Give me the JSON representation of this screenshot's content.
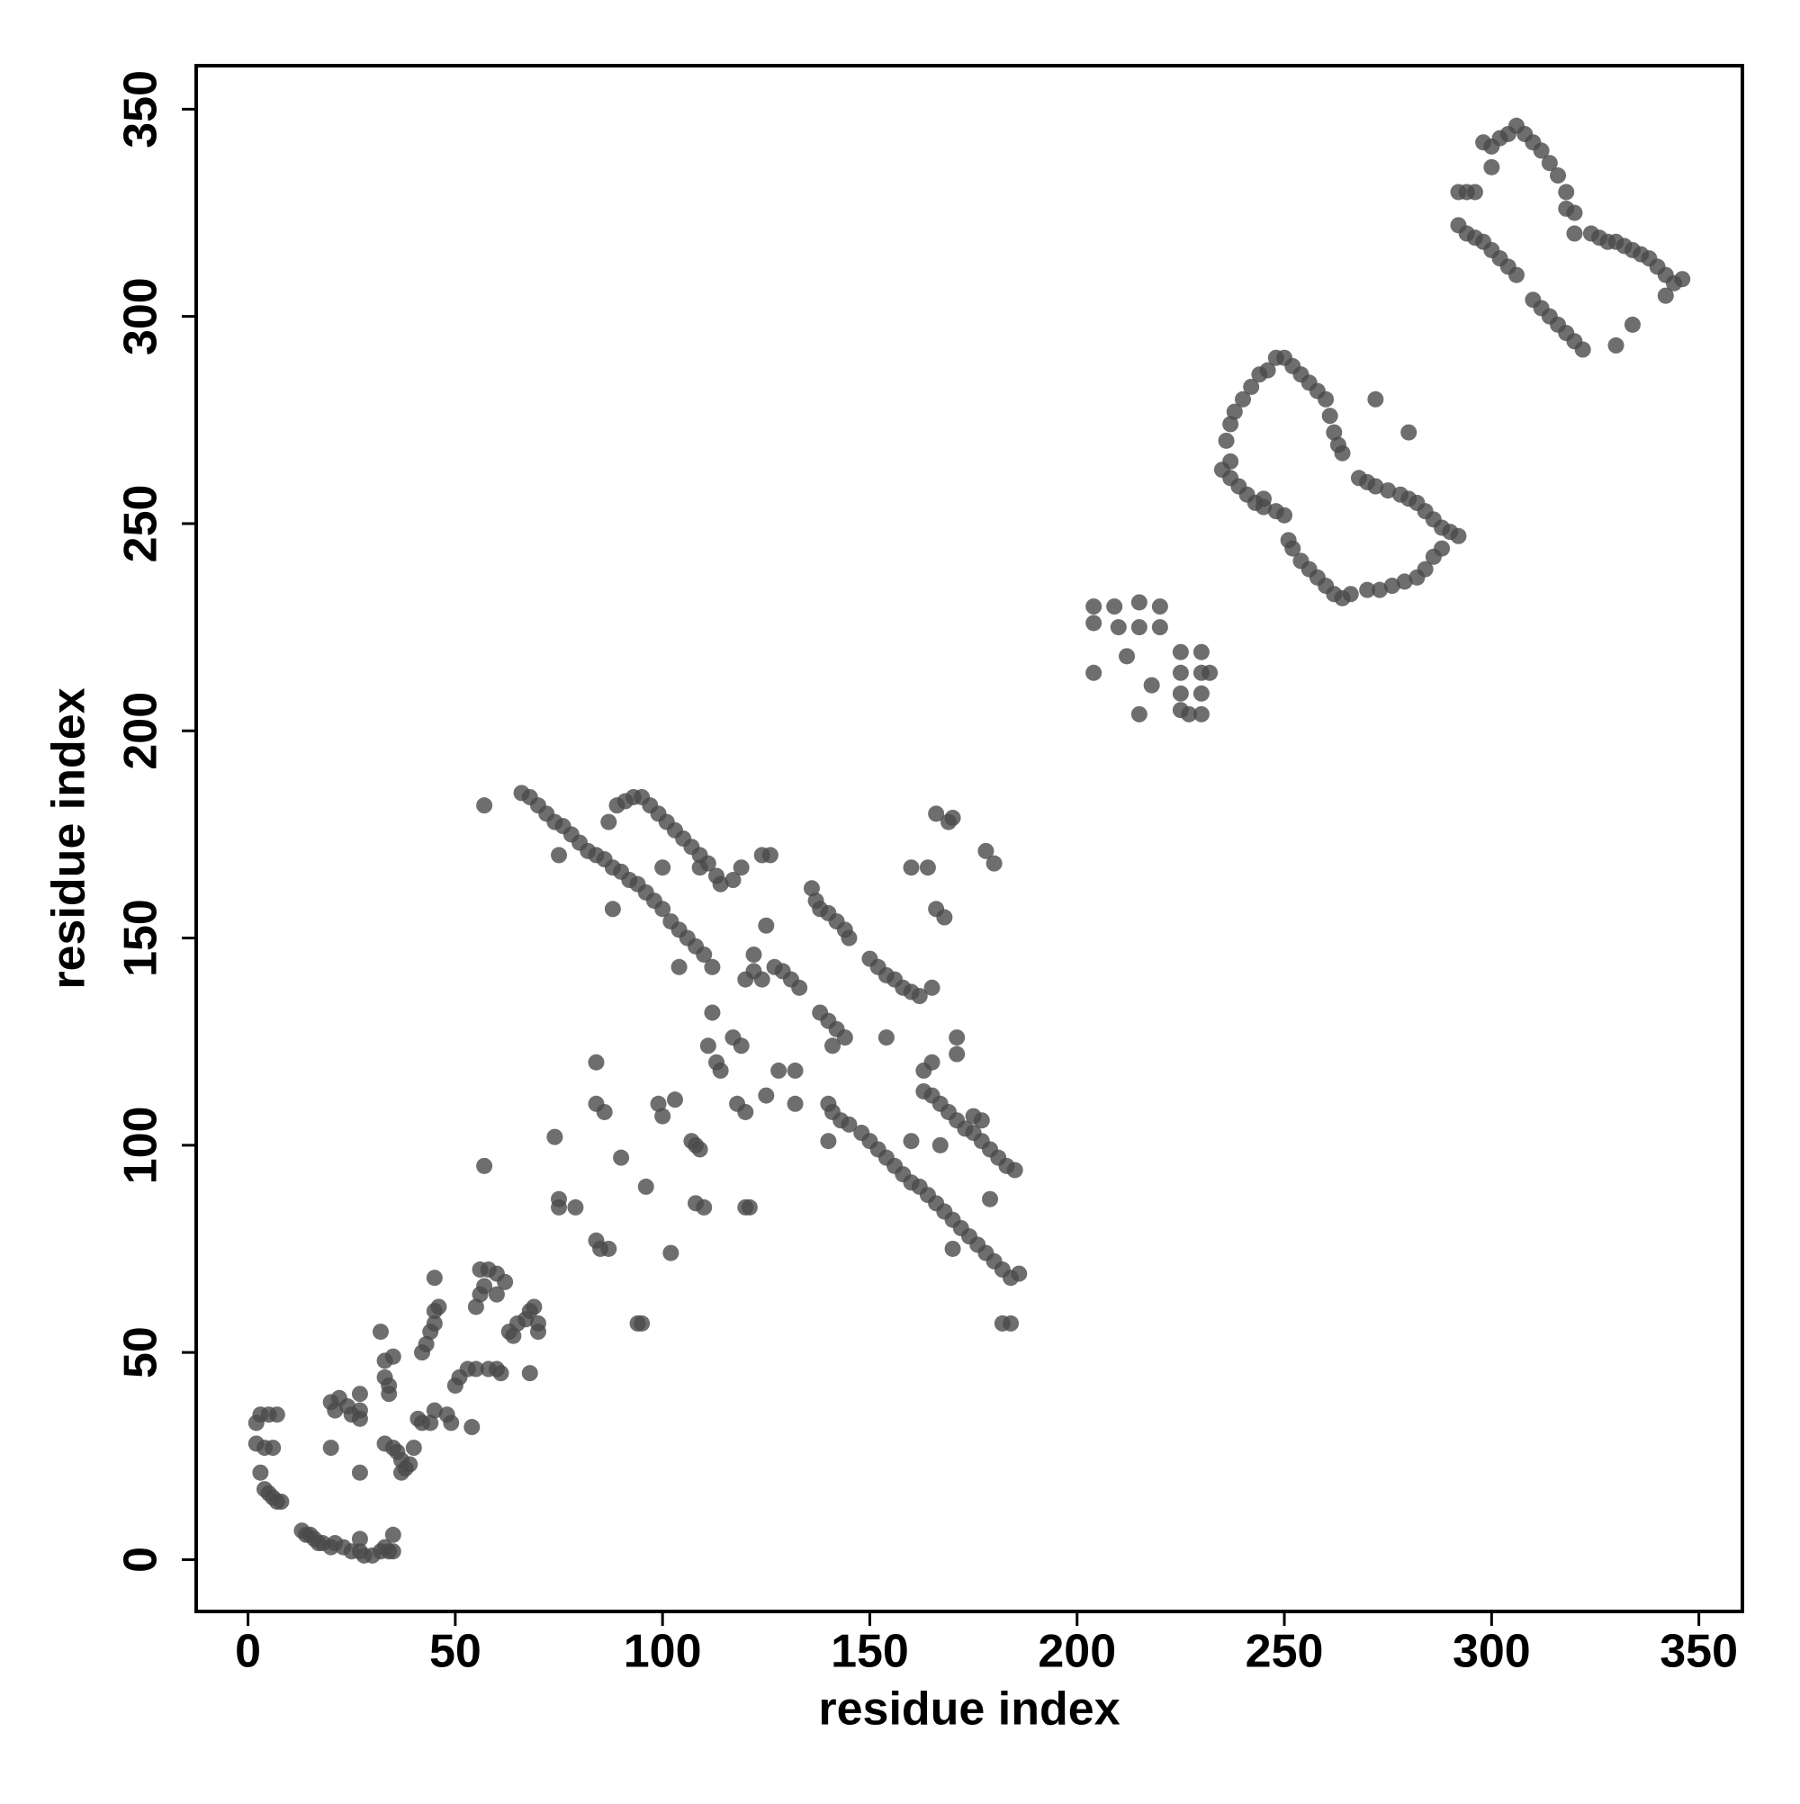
{
  "chart_data": {
    "type": "scatter",
    "x_label": "residue index",
    "y_label": "residue index",
    "xlim": [
      -12.5,
      360.5
    ],
    "ylim": [
      -12.5,
      360.5
    ],
    "xticks": [
      0,
      50,
      100,
      150,
      200,
      250,
      300,
      350
    ],
    "yticks": [
      0,
      50,
      100,
      150,
      200,
      250,
      300,
      350
    ],
    "color": "#4a4a4a",
    "x": [
      2,
      3,
      5,
      7,
      2,
      4,
      6,
      3,
      4,
      5,
      6,
      7,
      8,
      13,
      14,
      15,
      16,
      17,
      18,
      20,
      21,
      23,
      25,
      27,
      28,
      30,
      32,
      34,
      35,
      35,
      27,
      33,
      20,
      21,
      22,
      24,
      25,
      27,
      27,
      27,
      20,
      27,
      32,
      33,
      34,
      33,
      35,
      34,
      33,
      35,
      36,
      37,
      38,
      37,
      39,
      40,
      42,
      41,
      44,
      49,
      48,
      45,
      54,
      42,
      43,
      44,
      45,
      45,
      46,
      45,
      50,
      51,
      53,
      55,
      58,
      60,
      61,
      55,
      56,
      57,
      58,
      60,
      62,
      60,
      56,
      57,
      63,
      65,
      67,
      68,
      69,
      70,
      70,
      68,
      64,
      74,
      75,
      75,
      79,
      84,
      85,
      87,
      84,
      84,
      86,
      90,
      94,
      95,
      96,
      99,
      100,
      102,
      107,
      109,
      108,
      110,
      120,
      121,
      109,
      100,
      117,
      66,
      68,
      70,
      72,
      74,
      76,
      78,
      80,
      82,
      84,
      86,
      88,
      90,
      92,
      94,
      96,
      98,
      100,
      102,
      104,
      106,
      108,
      110,
      112,
      87,
      89,
      91,
      93,
      95,
      97,
      99,
      101,
      103,
      105,
      107,
      109,
      111,
      113,
      114,
      57,
      75,
      88,
      104,
      136,
      137,
      138,
      140,
      142,
      144,
      145,
      150,
      152,
      154,
      156,
      158,
      160,
      162,
      165,
      122,
      124,
      127,
      129,
      131,
      133,
      138,
      140,
      142,
      144,
      141,
      117,
      119,
      111,
      113,
      114,
      112,
      118,
      120,
      125,
      128,
      132,
      132,
      140,
      141,
      143,
      145,
      148,
      150,
      152,
      154,
      156,
      158,
      160,
      162,
      164,
      166,
      168,
      170,
      172,
      174,
      176,
      178,
      180,
      182,
      184,
      186,
      163,
      165,
      167,
      169,
      171,
      173,
      175,
      177,
      179,
      181,
      183,
      185,
      166,
      169,
      170,
      178,
      180,
      164,
      160,
      166,
      168,
      154,
      163,
      171,
      171,
      179,
      182,
      184,
      170,
      175,
      177,
      160,
      167,
      140,
      125,
      122,
      119,
      108,
      103,
      120,
      124,
      126,
      165,
      204,
      204,
      204,
      209,
      210,
      212,
      215,
      215,
      215,
      220,
      220,
      218,
      225,
      225,
      225,
      225,
      227,
      230,
      230,
      230,
      230,
      232,
      235,
      237,
      239,
      241,
      243,
      245,
      248,
      250,
      236,
      237,
      238,
      240,
      242,
      244,
      246,
      248,
      250,
      252,
      254,
      256,
      258,
      260,
      261,
      262,
      263,
      264,
      268,
      270,
      272,
      275,
      278,
      280,
      282,
      284,
      286,
      288,
      290,
      292,
      288,
      286,
      284,
      282,
      279,
      276,
      273,
      270,
      266,
      264,
      262,
      260,
      258,
      256,
      254,
      252,
      251,
      237,
      245,
      272,
      280,
      298,
      300,
      302,
      304,
      306,
      308,
      310,
      312,
      314,
      316,
      318,
      318,
      320,
      292,
      294,
      296,
      300,
      292,
      294,
      296,
      298,
      300,
      302,
      304,
      306,
      310,
      312,
      314,
      316,
      318,
      320,
      322,
      330,
      334,
      320,
      324,
      326,
      328,
      330,
      332,
      334,
      336,
      338,
      340,
      342,
      344,
      346,
      342
    ],
    "values": [
      33,
      35,
      35,
      35,
      28,
      27,
      27,
      21,
      17,
      16,
      15,
      14,
      14,
      7,
      6,
      6,
      5,
      4,
      4,
      3,
      4,
      3,
      2,
      2,
      1,
      1,
      2,
      2,
      2,
      6,
      5,
      3,
      38,
      36,
      39,
      37,
      35,
      34,
      36,
      40,
      27,
      21,
      55,
      48,
      42,
      44,
      49,
      40,
      28,
      27,
      26,
      24,
      22,
      21,
      23,
      27,
      33,
      34,
      33,
      33,
      35,
      36,
      32,
      50,
      52,
      55,
      57,
      60,
      61,
      68,
      42,
      44,
      46,
      46,
      46,
      46,
      45,
      61,
      64,
      66,
      70,
      69,
      67,
      64,
      70,
      95,
      55,
      57,
      58,
      60,
      61,
      57,
      55,
      45,
      54,
      102,
      87,
      85,
      85,
      77,
      75,
      75,
      120,
      110,
      108,
      97,
      57,
      57,
      90,
      110,
      107,
      74,
      101,
      99,
      86,
      85,
      85,
      85,
      167,
      167,
      164,
      185,
      184,
      182,
      180,
      178,
      177,
      175,
      173,
      171,
      170,
      169,
      167,
      166,
      164,
      163,
      161,
      159,
      157,
      154,
      152,
      150,
      148,
      146,
      143,
      178,
      182,
      183,
      184,
      184,
      182,
      180,
      178,
      176,
      174,
      172,
      170,
      168,
      165,
      163,
      182,
      170,
      157,
      143,
      162,
      159,
      157,
      156,
      154,
      152,
      150,
      145,
      143,
      141,
      140,
      138,
      137,
      136,
      138,
      142,
      140,
      143,
      142,
      140,
      138,
      132,
      130,
      128,
      126,
      124,
      126,
      124,
      124,
      120,
      118,
      132,
      110,
      108,
      112,
      118,
      118,
      110,
      110,
      108,
      106,
      105,
      103,
      101,
      99,
      97,
      95,
      93,
      91,
      90,
      88,
      86,
      84,
      82,
      80,
      78,
      76,
      74,
      72,
      70,
      68,
      69,
      113,
      112,
      110,
      108,
      106,
      104,
      103,
      101,
      99,
      97,
      95,
      94,
      180,
      178,
      179,
      171,
      168,
      167,
      167,
      157,
      155,
      126,
      118,
      126,
      122,
      87,
      57,
      57,
      75,
      107,
      106,
      101,
      100,
      101,
      153,
      146,
      167,
      100,
      111,
      140,
      170,
      170,
      120,
      230,
      226,
      214,
      230,
      225,
      218,
      231,
      225,
      204,
      230,
      225,
      211,
      219,
      214,
      209,
      205,
      204,
      219,
      214,
      209,
      204,
      214,
      263,
      261,
      259,
      257,
      255,
      254,
      253,
      252,
      270,
      274,
      277,
      280,
      283,
      286,
      287,
      290,
      290,
      288,
      286,
      284,
      282,
      280,
      276,
      272,
      269,
      267,
      261,
      260,
      259,
      258,
      257,
      256,
      255,
      253,
      251,
      249,
      248,
      247,
      244,
      242,
      239,
      237,
      236,
      235,
      234,
      234,
      233,
      232,
      233,
      235,
      237,
      239,
      241,
      244,
      246,
      265,
      256,
      280,
      272,
      342,
      341,
      343,
      344,
      346,
      344,
      342,
      340,
      337,
      334,
      330,
      326,
      325,
      330,
      330,
      330,
      336,
      322,
      320,
      319,
      318,
      316,
      314,
      312,
      310,
      304,
      302,
      300,
      298,
      296,
      294,
      292,
      293,
      298,
      320,
      320,
      319,
      318,
      318,
      317,
      316,
      315,
      314,
      312,
      310,
      308,
      309,
      305
    ]
  }
}
